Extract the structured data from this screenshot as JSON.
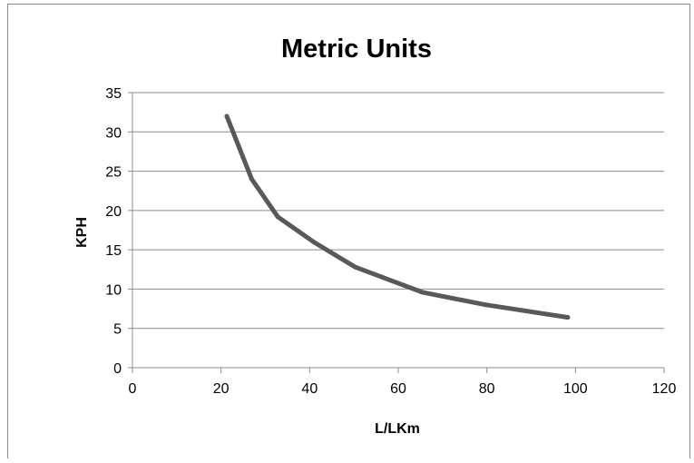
{
  "chart_data": {
    "type": "line",
    "title": "Metric Units",
    "xlabel": "L/LKm",
    "ylabel": "KPH",
    "xlim": [
      0,
      120
    ],
    "ylim": [
      0,
      35
    ],
    "x_ticks": [
      0,
      20,
      40,
      60,
      80,
      100,
      120
    ],
    "y_ticks": [
      0,
      5,
      10,
      15,
      20,
      25,
      30,
      35
    ],
    "grid": "horizontal",
    "legend": "none",
    "series": [
      {
        "color": "#595959",
        "points": [
          {
            "x": 21.3,
            "y": 32.0
          },
          {
            "x": 26.9,
            "y": 24.0
          },
          {
            "x": 32.8,
            "y": 19.2
          },
          {
            "x": 40.9,
            "y": 16.0
          },
          {
            "x": 50.3,
            "y": 12.8
          },
          {
            "x": 65.4,
            "y": 9.6
          },
          {
            "x": 79.7,
            "y": 8.0
          },
          {
            "x": 98.3,
            "y": 6.4
          }
        ]
      }
    ]
  }
}
